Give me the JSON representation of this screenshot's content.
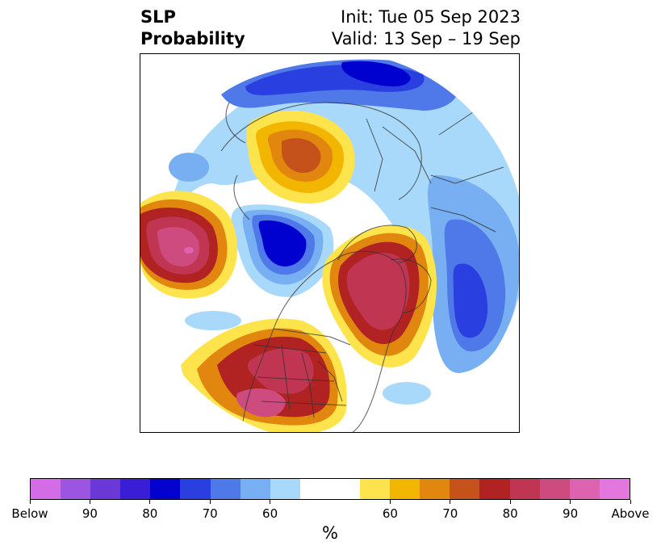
{
  "title": {
    "left_line1": "SLP",
    "left_line2": "Probability",
    "right_line1": "Init: Tue 05 Sep 2023",
    "right_line2": "Valid: 13 Sep – 19 Sep"
  },
  "map": {
    "projection": "north-polar-stereographic",
    "below_colors": [
      "#d36de6",
      "#9b55e0",
      "#6b38d8",
      "#3a1ed6",
      "#0000cf",
      "#2a3fe0",
      "#4f78e8",
      "#77aff2",
      "#a9d9fa"
    ],
    "above_colors": [
      "#fde44c",
      "#f3b600",
      "#e1870f",
      "#c4521a",
      "#b12222",
      "#c03552",
      "#ce4b80",
      "#dd62b0",
      "#e477de"
    ],
    "anomalies": [
      {
        "region": "Aleutians / North Pacific",
        "sign": "above",
        "peak_percent": 90
      },
      {
        "region": "Gulf of Alaska",
        "sign": "below",
        "peak_percent": 80
      },
      {
        "region": "Western & Central United States",
        "sign": "above",
        "peak_percent": 90
      },
      {
        "region": "Greenland / Labrador",
        "sign": "above",
        "peak_percent": 90
      },
      {
        "region": "Northeast Atlantic",
        "sign": "below",
        "peak_percent": 80
      },
      {
        "region": "East Siberian / Kara Sea",
        "sign": "below",
        "peak_percent": 80
      },
      {
        "region": "Arctic Russia",
        "sign": "above",
        "peak_percent": 80
      }
    ]
  },
  "colorbar": {
    "label": "%",
    "tick_labels": [
      "Below",
      "90",
      "80",
      "70",
      "60",
      "60",
      "70",
      "80",
      "90",
      "Above"
    ],
    "colors": [
      "#d36de6",
      "#9b55e0",
      "#6b38d8",
      "#3a1ed6",
      "#0000cf",
      "#2a3fe0",
      "#4f78e8",
      "#77aff2",
      "#a9d9fa",
      "#ffffff",
      "#fde44c",
      "#f3b600",
      "#e1870f",
      "#c4521a",
      "#b12222",
      "#c03552",
      "#ce4b80",
      "#dd62b0",
      "#e477de"
    ]
  }
}
